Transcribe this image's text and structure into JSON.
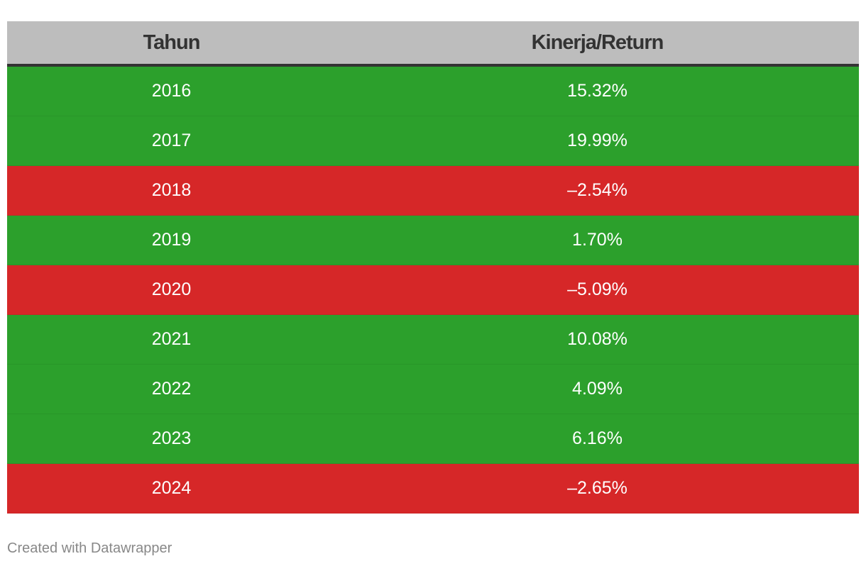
{
  "chart_data": {
    "type": "table",
    "columns": [
      "Tahun",
      "Kinerja/Return"
    ],
    "rows": [
      {
        "year": "2016",
        "return_label": "15.32%",
        "value": 15.32
      },
      {
        "year": "2017",
        "return_label": "19.99%",
        "value": 19.99
      },
      {
        "year": "2018",
        "return_label": "–2.54%",
        "value": -2.54
      },
      {
        "year": "2019",
        "return_label": "1.70%",
        "value": 1.7
      },
      {
        "year": "2020",
        "return_label": "–5.09%",
        "value": -5.09
      },
      {
        "year": "2021",
        "return_label": "10.08%",
        "value": 10.08
      },
      {
        "year": "2022",
        "return_label": "4.09%",
        "value": 4.09
      },
      {
        "year": "2023",
        "return_label": "6.16%",
        "value": 6.16
      },
      {
        "year": "2024",
        "return_label": "–2.65%",
        "value": -2.65
      }
    ],
    "colors": {
      "positive": "#2ca02c",
      "negative": "#d62728",
      "header_bg": "#bdbdbd",
      "header_text": "#333333"
    }
  },
  "footer": {
    "credit": "Created with Datawrapper"
  }
}
